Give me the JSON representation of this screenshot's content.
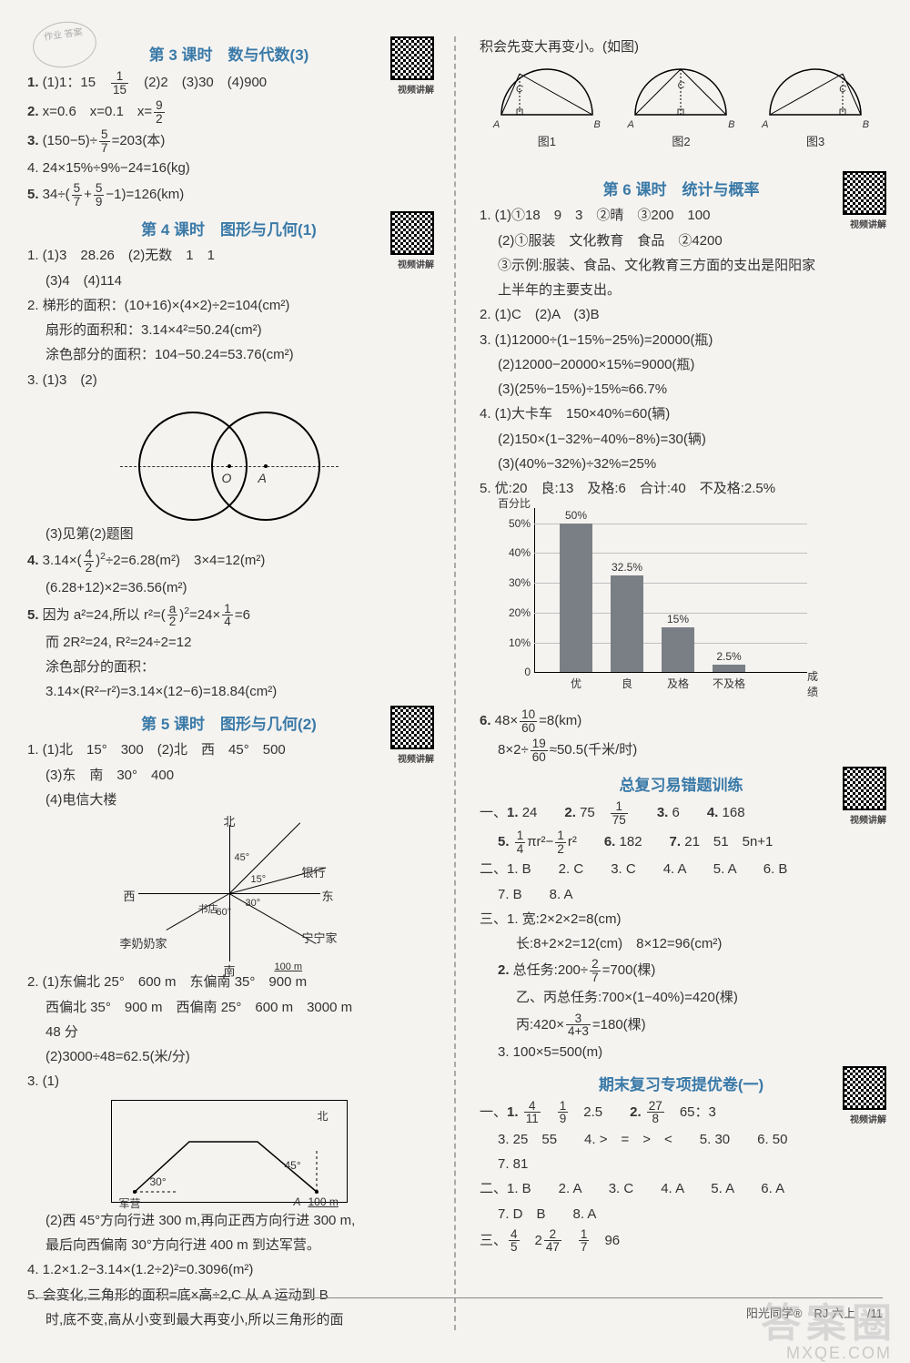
{
  "stamp": "作业\n答案",
  "left": {
    "sec3": {
      "title": "第 3 课时　数与代数(3)",
      "qr_label": "视频讲解",
      "l1": "1. (1)1：15　1/15　(2)2　(3)30　(4)900",
      "l2": "2. x=0.6　x=0.1　x=9/2",
      "l3": "3. (150−5)÷5/7=203(本)",
      "l4": "4. 24×15%÷9%−24=16(kg)",
      "l5": "5. 34÷(5/7+5/9−1)=126(km)"
    },
    "sec4": {
      "title": "第 4 课时　图形与几何(1)",
      "qr_label": "视频讲解",
      "l1": "1. (1)3　28.26　(2)无数　1　1",
      "l1b": "(3)4　(4)114",
      "l2a": "2. 梯形的面积：(10+16)×(4×2)÷2=104(cm²)",
      "l2b": "扇形的面积和：3.14×4²=50.24(cm²)",
      "l2c": "涂色部分的面积：104−50.24=53.76(cm²)",
      "l3a": "3. (1)3　(2)",
      "venn": {
        "O": "O",
        "A": "A"
      },
      "l3b": "(3)见第(2)题图",
      "l4a": "4. 3.14×(4/2)²÷2=6.28(m²)　3×4=12(m²)",
      "l4b": "(6.28+12)×2=36.56(m²)",
      "l5a": "5. 因为 a²=24,所以 r²=(a/2)²=24×1/4=6",
      "l5b": "而 2R²=24, R²=24÷2=12",
      "l5c": "涂色部分的面积：",
      "l5d": "3.14×(R²−r²)=3.14×(12−6)=18.84(cm²)"
    },
    "sec5": {
      "title": "第 5 课时　图形与几何(2)",
      "qr_label": "视频讲解",
      "l1a": "1. (1)北　15°　300　(2)北　西　45°　500",
      "l1b": "(3)东　南　30°　400",
      "l1c": "(4)电信大楼",
      "compass": {
        "n": "北",
        "s": "南",
        "e": "东",
        "w": "西",
        "a45": "45°",
        "a15": "15°",
        "a30": "30°",
        "a60": "60°",
        "bank": "银行",
        "ning": "宁宁家",
        "li": "李奶奶家",
        "shu": "书店",
        "scale": "100 m"
      },
      "l2a": "2. (1)东偏北 25°　600 m　东偏南 35°　900 m",
      "l2b": "西偏北 35°　900 m　西偏南 25°　600 m　3000 m",
      "l2c": "48 分",
      "l2d": "(2)3000÷48=62.5(米/分)",
      "l3a": "3. (1)",
      "route": {
        "a30": "30°",
        "a45": "45°",
        "N": "北",
        "camp": "军营",
        "A": "A",
        "scale": "100 m"
      },
      "l3b": "(2)西 45°方向行进 300 m,再向正西方向行进 300 m,",
      "l3c": "最后向西偏南 30°方向行进 400 m 到达军营。",
      "l4": "4. 1.2×1.2−3.14×(1.2÷2)²=0.3096(m²)",
      "l5a": "5. 会变化,三角形的面积=底×高÷2,C 从 A 运动到 B",
      "l5b": "时,底不变,高从小变到最大再变小,所以三角形的面"
    }
  },
  "right": {
    "cont": "积会先变大再变小。(如图)",
    "semis": {
      "labels": [
        "图1",
        "图2",
        "图3"
      ],
      "C": "C",
      "A": "A",
      "B": "B"
    },
    "sec6": {
      "title": "第 6 课时　统计与概率",
      "qr_label": "视频讲解",
      "l1a": "1. (1)①18　9　3　②晴　③200　100",
      "l1b": "(2)①服装　文化教育　食品　②4200",
      "l1c": "③示例:服装、食品、文化教育三方面的支出是阳阳家",
      "l1d": "上半年的主要支出。",
      "l2": "2. (1)C　(2)A　(3)B",
      "l3a": "3. (1)12000÷(1−15%−25%)=20000(瓶)",
      "l3b": "(2)12000−20000×15%=9000(瓶)",
      "l3c": "(3)(25%−15%)÷15%≈66.7%",
      "l4a": "4. (1)大卡车　150×40%=60(辆)",
      "l4b": "(2)150×(1−32%−40%−8%)=30(辆)",
      "l4c": "(3)(40%−32%)÷32%=25%",
      "l5": "5. 优:20　良:13　及格:6　合计:40　不及格:2.5%",
      "chart": {
        "ylabel": "百分比",
        "ylim": [
          0,
          55
        ],
        "yticks": [
          "0",
          "10%",
          "20%",
          "30%",
          "40%",
          "50%"
        ],
        "ytick_vals": [
          0,
          10,
          20,
          30,
          40,
          50
        ],
        "grid_color": "#c0c0c0",
        "bar_color": "#7a7f85",
        "categories": [
          "优",
          "良",
          "及格",
          "不及格"
        ],
        "values": [
          50,
          32.5,
          15,
          2.5
        ],
        "value_labels": [
          "50%",
          "32.5%",
          "15%",
          "2.5%"
        ],
        "xtitle": "成绩"
      },
      "l6a": "6. 48×10/60=8(km)",
      "l6b": "8×2÷19/60≈50.5(千米/时)"
    },
    "review": {
      "title": "总复习易错题训练",
      "qr_label": "视频讲解",
      "y1": "一、1. 24　　2. 75　1/75　　3. 6　　4. 168",
      "y1b": "5. 1/4πr²−1/2r²　　6. 182　　7. 21　51　5n+1",
      "y2": "二、1. B　　2. C　　3. C　　4. A　　5. A　　6. B",
      "y2b": "7. B　　8. A",
      "y3a": "三、1. 宽:2×2×2=8(cm)",
      "y3b": "长:8+2×2=12(cm)　8×12=96(cm²)",
      "y3c": "2. 总任务:200÷2/7=700(棵)",
      "y3d": "乙、丙总任务:700×(1−40%)=420(棵)",
      "y3e": "丙:420×3/(4+3)=180(棵)",
      "y3f": "3. 100×5=500(m)"
    },
    "final": {
      "title": "期末复习专项提优卷(一)",
      "qr_label": "视频讲解",
      "y1a": "一、1. 4/11　1/9　2.5　　2. 27/8　65：3",
      "y1b": "3. 25　55　　4. >　=　>　<　　5. 30　　6. 50",
      "y1c": "7. 81",
      "y2a": "二、1. B　　2. A　　3. C　　4. A　　5. A　　6. A",
      "y2b": "7. D　B　　8. A",
      "y3": "三、4/5　2 2/47　1/7　96"
    }
  },
  "footer": "阳光同学®　RJ 六上　/11",
  "watermark": "答案圈",
  "watermark2": "MXQE.COM"
}
